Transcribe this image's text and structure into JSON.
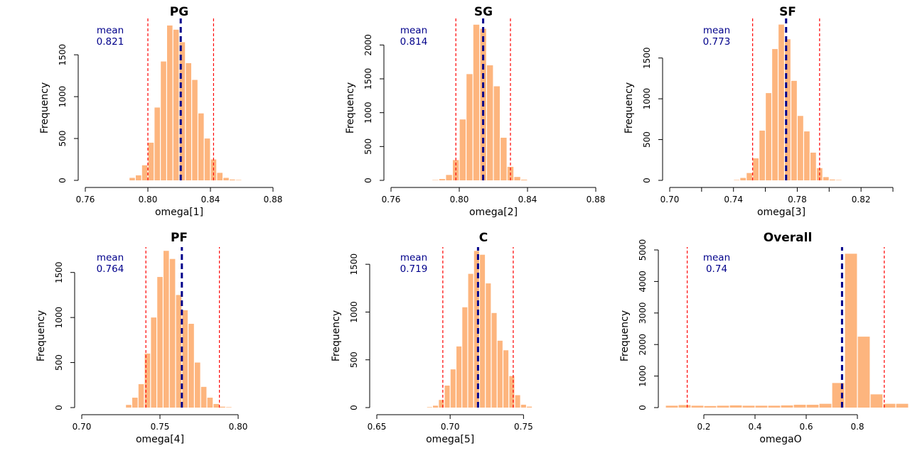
{
  "chart_data": [
    {
      "type": "bar",
      "title": "PG",
      "xlabel": "omega[1]",
      "ylabel": "Frequency",
      "mean_label": "mean",
      "mean_value": "0.821",
      "mean": 0.821,
      "ci": [
        0.8,
        0.842
      ],
      "xlim": [
        0.76,
        0.88
      ],
      "ylim": [
        0,
        1900
      ],
      "xticks": [
        0.76,
        0.8,
        0.84,
        0.88
      ],
      "xtick_labels": [
        "0.76",
        "0.80",
        "0.84",
        "0.88"
      ],
      "yticks": [
        0,
        500,
        1000,
        1500
      ],
      "ytick_labels": [
        "0",
        "500",
        "1000",
        "1500"
      ],
      "bin_width": 0.004,
      "bins": [
        0.788,
        0.792,
        0.796,
        0.8,
        0.804,
        0.808,
        0.812,
        0.816,
        0.82,
        0.824,
        0.828,
        0.832,
        0.836,
        0.84,
        0.844,
        0.848,
        0.852,
        0.856
      ],
      "values": [
        30,
        60,
        180,
        450,
        870,
        1420,
        1850,
        1800,
        1650,
        1400,
        1200,
        800,
        500,
        250,
        90,
        30,
        10,
        5
      ]
    },
    {
      "type": "bar",
      "title": "SG",
      "xlabel": "omega[2]",
      "ylabel": "Frequency",
      "mean_label": "mean",
      "mean_value": "0.814",
      "mean": 0.814,
      "ci": [
        0.798,
        0.83
      ],
      "xlim": [
        0.76,
        0.88
      ],
      "ylim": [
        0,
        2350
      ],
      "xticks": [
        0.76,
        0.8,
        0.84,
        0.88
      ],
      "xtick_labels": [
        "0.76",
        "0.80",
        "0.84",
        "0.88"
      ],
      "yticks": [
        0,
        500,
        1000,
        1500,
        2000
      ],
      "ytick_labels": [
        "0",
        "500",
        "1000",
        "1500",
        "2000"
      ],
      "bin_width": 0.004,
      "bins": [
        0.784,
        0.788,
        0.792,
        0.796,
        0.8,
        0.804,
        0.808,
        0.812,
        0.816,
        0.82,
        0.824,
        0.828,
        0.832,
        0.836
      ],
      "values": [
        5,
        20,
        80,
        300,
        900,
        1570,
        2300,
        2240,
        1700,
        1390,
        630,
        200,
        50,
        10
      ]
    },
    {
      "type": "bar",
      "title": "SF",
      "xlabel": "omega[3]",
      "ylabel": "Frequency",
      "mean_label": "mean",
      "mean_value": "0.773",
      "mean": 0.773,
      "ci": [
        0.752,
        0.794
      ],
      "xlim": [
        0.7,
        0.84
      ],
      "ylim": [
        0,
        1950
      ],
      "xticks": [
        0.7,
        0.72,
        0.74,
        0.76,
        0.78,
        0.8,
        0.82,
        0.84
      ],
      "xtick_labels": [
        "0.70",
        "",
        "0.74",
        "",
        "0.78",
        "",
        "0.82",
        ""
      ],
      "yticks": [
        0,
        500,
        1000,
        1500
      ],
      "ytick_labels": [
        "0",
        "500",
        "1000",
        "1500"
      ],
      "bin_width": 0.004,
      "bins": [
        0.74,
        0.744,
        0.748,
        0.752,
        0.756,
        0.76,
        0.764,
        0.768,
        0.772,
        0.776,
        0.78,
        0.784,
        0.788,
        0.792,
        0.796,
        0.8,
        0.804
      ],
      "values": [
        5,
        30,
        90,
        270,
        610,
        1070,
        1610,
        1910,
        1730,
        1220,
        790,
        600,
        340,
        150,
        40,
        10,
        5
      ]
    },
    {
      "type": "bar",
      "title": "PF",
      "xlabel": "omega[4]",
      "ylabel": "Frequency",
      "mean_label": "mean",
      "mean_value": "0.764",
      "mean": 0.764,
      "ci": [
        0.741,
        0.788
      ],
      "xlim": [
        0.7,
        0.8
      ],
      "ylim": [
        0,
        1750
      ],
      "xticks": [
        0.7,
        0.75,
        0.8
      ],
      "xtick_labels": [
        "0.70",
        "0.75",
        "0.80"
      ],
      "yticks": [
        0,
        500,
        1000,
        1500
      ],
      "ytick_labels": [
        "0",
        "500",
        "1000",
        "1500"
      ],
      "bin_width": 0.004,
      "bins": [
        0.728,
        0.732,
        0.736,
        0.74,
        0.744,
        0.748,
        0.752,
        0.756,
        0.76,
        0.764,
        0.768,
        0.772,
        0.776,
        0.78,
        0.784,
        0.788,
        0.792
      ],
      "values": [
        30,
        110,
        260,
        600,
        1000,
        1450,
        1740,
        1650,
        1250,
        1080,
        930,
        500,
        230,
        110,
        40,
        10,
        5
      ]
    },
    {
      "type": "bar",
      "title": "C",
      "xlabel": "omega[5]",
      "ylabel": "Frequency",
      "mean_label": "mean",
      "mean_value": "0.719",
      "mean": 0.719,
      "ci": [
        0.695,
        0.743
      ],
      "xlim": [
        0.65,
        0.76
      ],
      "ylim": [
        0,
        1650
      ],
      "xticks": [
        0.65,
        0.7,
        0.75
      ],
      "xtick_labels": [
        "0.65",
        "0.70",
        "0.75"
      ],
      "yticks": [
        0,
        500,
        1000,
        1500
      ],
      "ytick_labels": [
        "0",
        "500",
        "1000",
        "1500"
      ],
      "bin_width": 0.004,
      "bins": [
        0.684,
        0.688,
        0.692,
        0.696,
        0.7,
        0.704,
        0.708,
        0.712,
        0.716,
        0.72,
        0.724,
        0.728,
        0.732,
        0.736,
        0.74,
        0.744,
        0.748,
        0.752
      ],
      "values": [
        5,
        20,
        80,
        230,
        400,
        640,
        1050,
        1400,
        1640,
        1600,
        1300,
        990,
        700,
        600,
        330,
        130,
        30,
        10
      ]
    },
    {
      "type": "bar",
      "title": "Overall",
      "xlabel": "omegaO",
      "ylabel": "Frequency",
      "mean_label": "mean",
      "mean_value": "0.74",
      "mean": 0.74,
      "ci": [
        0.135,
        0.905
      ],
      "xlim": [
        0.05,
        1.0
      ],
      "ylim": [
        0,
        5000
      ],
      "xticks": [
        0.2,
        0.4,
        0.6,
        0.8
      ],
      "xtick_labels": [
        "0.2",
        "0.4",
        "0.6",
        "0.8"
      ],
      "yticks": [
        0,
        1000,
        2000,
        3000,
        4000,
        5000
      ],
      "ytick_labels": [
        "0",
        "1000",
        "2000",
        "3000",
        "4000",
        "5000"
      ],
      "bin_width": 0.05,
      "bins": [
        0.05,
        0.1,
        0.15,
        0.2,
        0.25,
        0.3,
        0.35,
        0.4,
        0.45,
        0.5,
        0.55,
        0.6,
        0.65,
        0.7,
        0.75,
        0.8,
        0.85,
        0.9,
        0.95
      ],
      "values": [
        60,
        80,
        60,
        50,
        60,
        70,
        60,
        60,
        60,
        70,
        90,
        90,
        120,
        780,
        4880,
        2250,
        420,
        120,
        120
      ]
    }
  ]
}
